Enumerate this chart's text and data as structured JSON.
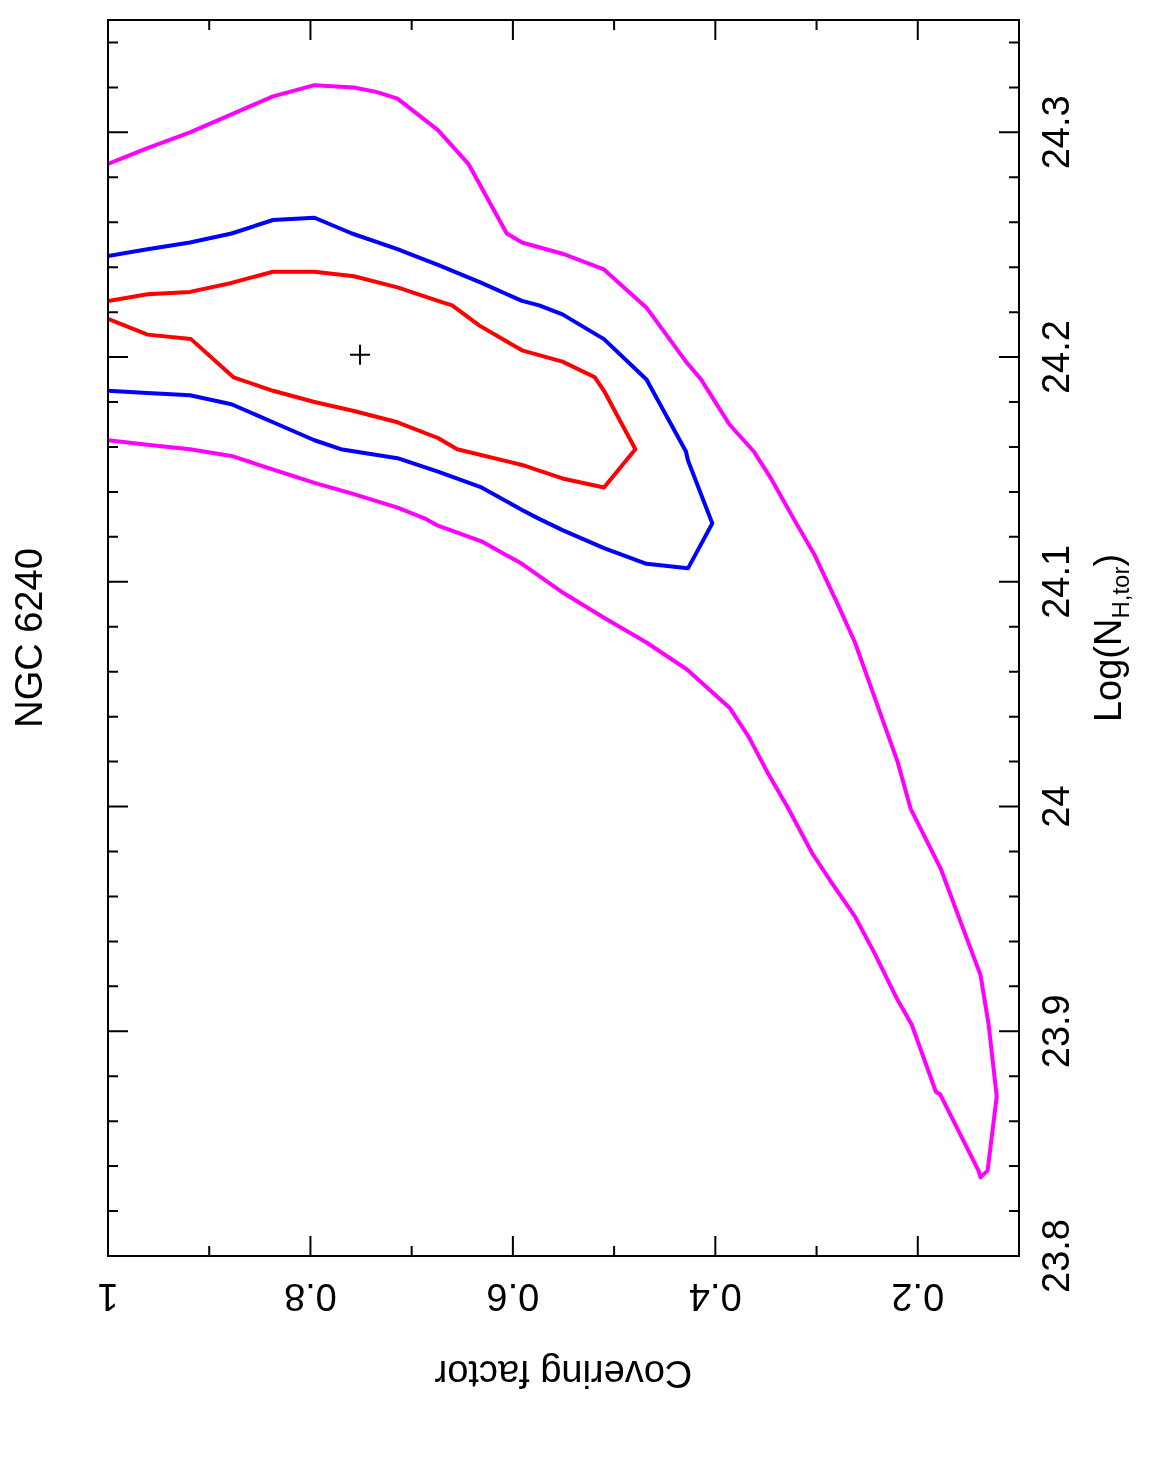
{
  "chart_data": {
    "type": "line",
    "title": "NGC 6240",
    "xlabel": "Covering factor",
    "ylabel": "Log(N$_{H,tor}$)",
    "xlim": [
      1,
      0.1
    ],
    "ylim": [
      23.8,
      24.35
    ],
    "xticks": [
      1,
      {
        "value": 0.9,
        "label": null
      },
      0.8,
      {
        "value": 0.7,
        "label": null
      },
      0.6,
      {
        "value": 0.5,
        "label": null
      },
      0.4,
      {
        "value": 0.3,
        "label": null
      },
      0.2
    ],
    "yticks": [
      23.8,
      {
        "value": 23.82,
        "label": null
      },
      {
        "value": 23.84,
        "label": null
      },
      {
        "value": 23.86,
        "label": null
      },
      {
        "value": 23.88,
        "label": null
      },
      23.9,
      {
        "value": 23.92,
        "label": null
      },
      {
        "value": 23.94,
        "label": null
      },
      {
        "value": 23.96,
        "label": null
      },
      {
        "value": 23.98,
        "label": null
      },
      24,
      {
        "value": 24.02,
        "label": null
      },
      {
        "value": 24.04,
        "label": null
      },
      {
        "value": 24.06,
        "label": null
      },
      {
        "value": 24.08,
        "label": null
      },
      24.1,
      {
        "value": 24.12,
        "label": null
      },
      {
        "value": 24.14,
        "label": null
      },
      {
        "value": 24.16,
        "label": null
      },
      {
        "value": 24.18,
        "label": null
      },
      24.2,
      {
        "value": 24.22,
        "label": null
      },
      {
        "value": 24.24,
        "label": null
      },
      {
        "value": 24.26,
        "label": null
      },
      {
        "value": 24.28,
        "label": null
      },
      24.3,
      {
        "value": 24.32,
        "label": null
      },
      {
        "value": 24.34,
        "label": null
      }
    ],
    "series": [
      {
        "color": "#ff00ff",
        "values": [
          24.286,
          24.293,
          24.3,
          24.308,
          24.316,
          24.321,
          24.32,
          24.318,
          24.315,
          24.301,
          24.286,
          24.255,
          24.251,
          24.246,
          24.239,
          24.222,
          24.198,
          24.19,
          24.17,
          24.158,
          24.146,
          24.126,
          24.112,
          24.09,
          24.073,
          24.049,
          24.02,
          23.999,
          23.972,
          23.925,
          23.903,
          23.871,
          23.838,
          23.835,
          23.838,
          23.872,
          23.873,
          23.903,
          23.914,
          23.935,
          23.951,
          23.966,
          23.979,
          24.0,
          24.014,
          24.031,
          24.044,
          24.061,
          24.073,
          24.084,
          24.095,
          24.108,
          24.118,
          24.125,
          24.128,
          24.133,
          24.139,
          24.144,
          24.156,
          24.159,
          24.161,
          24.163
        ],
        "x": [
          1.0,
          0.961,
          0.919,
          0.878,
          0.837,
          0.796,
          0.757,
          0.735,
          0.714,
          0.674,
          0.644,
          0.606,
          0.591,
          0.551,
          0.51,
          0.468,
          0.429,
          0.414,
          0.386,
          0.362,
          0.345,
          0.32,
          0.302,
          0.279,
          0.262,
          0.243,
          0.22,
          0.207,
          0.177,
          0.138,
          0.13,
          0.122,
          0.131,
          0.138,
          0.14,
          0.178,
          0.182,
          0.206,
          0.22,
          0.243,
          0.262,
          0.285,
          0.304,
          0.329,
          0.347,
          0.367,
          0.386,
          0.428,
          0.468,
          0.51,
          0.55,
          0.591,
          0.631,
          0.674,
          0.686,
          0.714,
          0.757,
          0.796,
          0.878,
          0.919,
          0.961,
          1.0
        ]
      },
      {
        "color": "#0000ff",
        "values": [
          24.245,
          24.248,
          24.251,
          24.255,
          24.261,
          24.262,
          24.255,
          24.248,
          24.241,
          24.233,
          24.225,
          24.223,
          24.219,
          24.208,
          24.19,
          24.158,
          24.154,
          24.126,
          24.106,
          24.108,
          24.115,
          24.123,
          24.128,
          24.132,
          24.142,
          24.149,
          24.155,
          24.159,
          24.163,
          24.171,
          24.179,
          24.183,
          24.184,
          24.185
        ],
        "x": [
          1.0,
          0.961,
          0.919,
          0.878,
          0.837,
          0.796,
          0.759,
          0.714,
          0.674,
          0.631,
          0.591,
          0.574,
          0.551,
          0.51,
          0.468,
          0.429,
          0.427,
          0.403,
          0.427,
          0.468,
          0.51,
          0.551,
          0.574,
          0.591,
          0.631,
          0.674,
          0.714,
          0.77,
          0.796,
          0.837,
          0.878,
          0.919,
          0.961,
          1.0
        ]
      },
      {
        "color": "#ff0000",
        "values": [
          24.225,
          24.228,
          24.229,
          24.233,
          24.238,
          24.238,
          24.236,
          24.231,
          24.225,
          24.223,
          24.214,
          24.203,
          24.198,
          24.191,
          24.185,
          24.159,
          24.142,
          24.146,
          24.152,
          24.159,
          24.164,
          24.171,
          24.176,
          24.18,
          24.185,
          24.191,
          24.208,
          24.21,
          24.217
        ],
        "x": [
          1.0,
          0.961,
          0.919,
          0.878,
          0.837,
          0.796,
          0.757,
          0.714,
          0.674,
          0.66,
          0.633,
          0.591,
          0.551,
          0.519,
          0.51,
          0.479,
          0.51,
          0.551,
          0.591,
          0.655,
          0.674,
          0.714,
          0.757,
          0.796,
          0.837,
          0.876,
          0.918,
          0.961,
          1.0
        ]
      },
      {
        "type": "scatter",
        "color": "#000000",
        "marker": "cross",
        "values": [
          24.201
        ],
        "x": [
          0.751
        ]
      }
    ]
  }
}
